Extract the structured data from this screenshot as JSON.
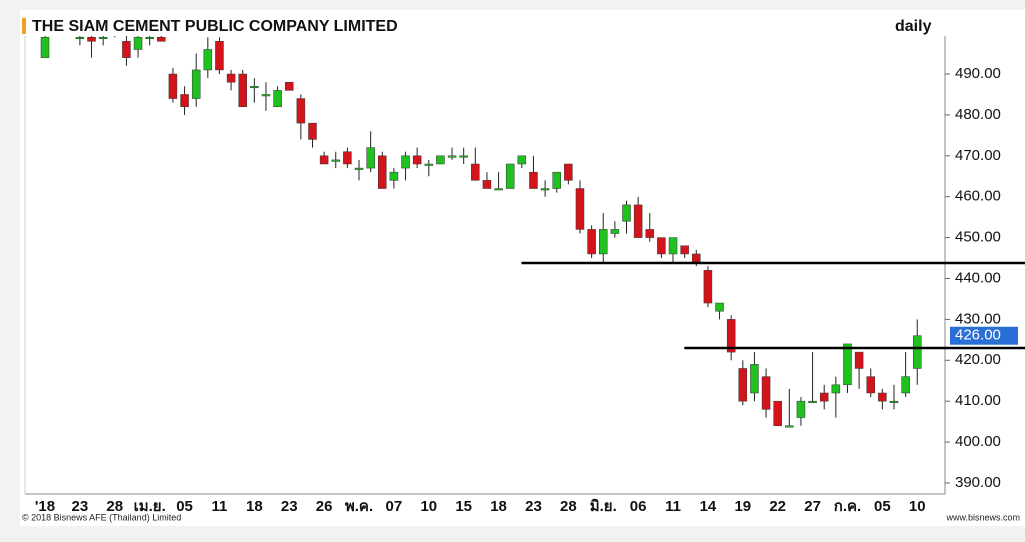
{
  "chart_data": {
    "type": "candlestick",
    "title": "THE SIAM CEMENT PUBLIC COMPANY LIMITED",
    "period": "daily",
    "copyright": "© 2018 Bisnews AFE (Thailand) Limited",
    "source": "www.bisnews.com",
    "up_color": "#1fc01f",
    "down_color": "#d3151b",
    "ylim": [
      387.3,
      499.3
    ],
    "yticks": [
      {
        "value": 390,
        "label": "390.00"
      },
      {
        "value": 400,
        "label": "400.00"
      },
      {
        "value": 410,
        "label": "410.00"
      },
      {
        "value": 420,
        "label": "420.00"
      },
      {
        "value": 430,
        "label": "430.00"
      },
      {
        "value": 440,
        "label": "440.00"
      },
      {
        "value": 450,
        "label": "450.00"
      },
      {
        "value": 460,
        "label": "460.00"
      },
      {
        "value": 470,
        "label": "470.00"
      },
      {
        "value": 480,
        "label": "480.00"
      },
      {
        "value": 490,
        "label": "490.00"
      }
    ],
    "last_price": {
      "value": 426,
      "label": "426.00"
    },
    "hlines": [
      {
        "value": 443.8,
        "from": 42
      },
      {
        "value": 423,
        "from": 56
      }
    ],
    "categories": [
      "'18",
      null,
      null,
      "23",
      null,
      null,
      "28",
      null,
      null,
      "เม.ย.",
      null,
      null,
      "05",
      null,
      null,
      "11",
      null,
      null,
      "18",
      null,
      null,
      "23",
      null,
      null,
      "26",
      null,
      null,
      "พ.ค.",
      null,
      null,
      "07",
      null,
      null,
      "10",
      null,
      null,
      "15",
      null,
      null,
      "18",
      null,
      null,
      "23",
      null,
      null,
      "28",
      null,
      null,
      "มิ.ย.",
      null,
      null,
      "06",
      null,
      null,
      "11",
      null,
      null,
      "14",
      null,
      null,
      "19",
      null,
      null,
      "22",
      null,
      null,
      "27",
      null,
      null,
      "ก.ค.",
      null,
      null,
      "05",
      null,
      null,
      "10"
    ],
    "open": [
      494,
      503,
      502,
      499,
      499,
      499,
      501,
      498,
      496,
      499,
      499,
      490,
      485,
      484,
      491,
      498,
      490,
      490,
      487,
      485,
      482,
      488,
      484,
      478,
      470,
      469,
      471,
      467,
      467,
      470,
      464,
      467,
      470,
      468,
      468,
      470,
      470,
      468,
      464,
      462,
      462,
      468,
      466,
      462,
      462,
      468,
      462,
      452,
      446,
      451,
      454,
      458,
      452,
      450,
      446,
      448,
      446,
      442,
      432,
      430,
      418,
      412,
      416,
      410,
      404,
      406,
      410,
      412,
      412,
      414,
      422,
      416,
      412,
      410,
      412,
      418
    ],
    "high": [
      500,
      505,
      505,
      500,
      500,
      500,
      503,
      500,
      500,
      500,
      500,
      491.5,
      487,
      495,
      499,
      499,
      491,
      491,
      489,
      488,
      487,
      488,
      485,
      478,
      471,
      471,
      472,
      469,
      476,
      471,
      467,
      471,
      472,
      469,
      470,
      472,
      472,
      472,
      466,
      466,
      468,
      470,
      470,
      464,
      466,
      468,
      464,
      453,
      456,
      454,
      459,
      460,
      456,
      450,
      450,
      448,
      447,
      443,
      434,
      431,
      420,
      422,
      418,
      410,
      413,
      411,
      422,
      414,
      416,
      424,
      422,
      418,
      413,
      414,
      422,
      430
    ],
    "low": [
      494,
      501,
      501,
      497,
      494,
      497,
      499,
      492,
      494,
      497,
      498,
      483,
      480,
      482,
      489,
      490,
      486,
      482,
      483,
      481,
      482,
      486,
      474,
      472,
      468,
      467,
      467,
      464,
      466,
      462,
      462,
      464,
      467,
      465,
      468,
      469,
      468,
      464,
      462,
      462,
      462,
      467,
      462,
      460,
      461,
      463,
      451,
      445,
      444,
      450,
      451,
      450,
      449,
      445,
      444,
      445,
      443,
      433,
      430,
      420,
      409,
      410,
      406,
      404,
      404,
      404,
      410,
      408,
      406,
      412,
      413,
      411,
      408,
      408,
      411,
      414
    ],
    "close": [
      499,
      502,
      504,
      499,
      498,
      499,
      502,
      494,
      499,
      499,
      498,
      484,
      482,
      491,
      496,
      491,
      488,
      482,
      487,
      485,
      486,
      486,
      478,
      474,
      468,
      469,
      468,
      467,
      472,
      462,
      466,
      470,
      468,
      468,
      470,
      470,
      470,
      464,
      462,
      462,
      468,
      470,
      462,
      462,
      466,
      464,
      452,
      446,
      452,
      452,
      458,
      450,
      450,
      446,
      450,
      446,
      444,
      434,
      434,
      422,
      410,
      419,
      408,
      404,
      404,
      410,
      410,
      410,
      414,
      424,
      418,
      412,
      410,
      410,
      416,
      426
    ]
  }
}
